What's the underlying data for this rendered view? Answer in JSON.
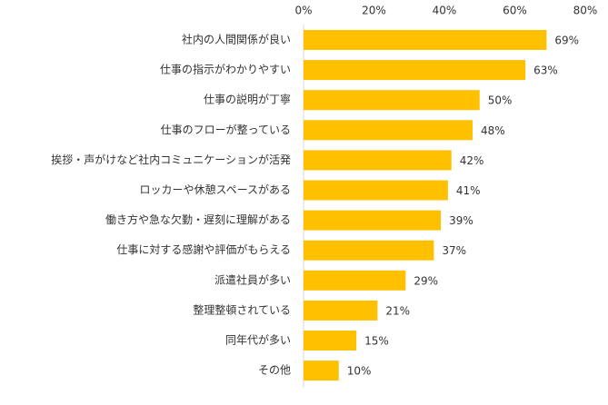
{
  "chart_data": {
    "type": "bar",
    "orientation": "horizontal",
    "categories": [
      "社内の人間関係が良い",
      "仕事の指示がわかりやすい",
      "仕事の説明が丁寧",
      "仕事のフローが整っている",
      "挨拶・声がけなど社内コミュニケーションが活発",
      "ロッカーや休憩スペースがある",
      "働き方や急な欠勤・遅刻に理解がある",
      "仕事に対する感謝や評価がもらえる",
      "派遣社員が多い",
      "整理整頓されている",
      "同年代が多い",
      "その他"
    ],
    "values": [
      69,
      63,
      50,
      48,
      42,
      41,
      39,
      37,
      29,
      21,
      15,
      10
    ],
    "value_labels": [
      "69%",
      "63%",
      "50%",
      "48%",
      "42%",
      "41%",
      "39%",
      "37%",
      "29%",
      "21%",
      "15%",
      "10%"
    ],
    "xticks": [
      0,
      20,
      40,
      60,
      80
    ],
    "xtick_labels": [
      "0%",
      "20%",
      "40%",
      "60%",
      "80%"
    ],
    "xlim": [
      0,
      80
    ],
    "bar_color": "#FFC000",
    "axis_position": "top",
    "grid": false,
    "legend": "none"
  }
}
